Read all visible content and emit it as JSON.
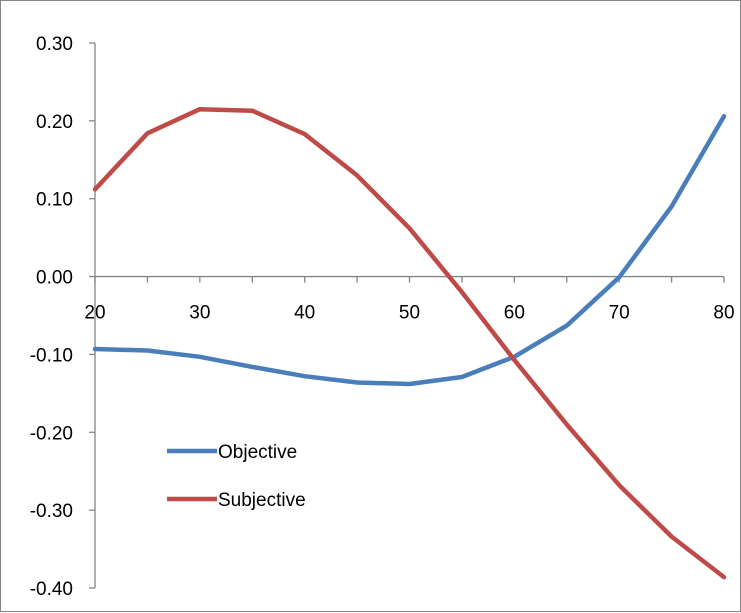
{
  "chart_data": {
    "type": "line",
    "title": "",
    "xlabel": "",
    "ylabel": "",
    "x": [
      20,
      25,
      30,
      35,
      40,
      45,
      50,
      55,
      60,
      65,
      70,
      75,
      80
    ],
    "xlim": [
      20,
      80
    ],
    "ylim": [
      -0.4,
      0.3
    ],
    "x_ticks": [
      "20",
      "30",
      "40",
      "50",
      "60",
      "70",
      "80"
    ],
    "y_ticks": [
      "0.30",
      "0.20",
      "0.10",
      "0.00",
      "-0.10",
      "-0.20",
      "-0.30",
      "-0.40"
    ],
    "grid": false,
    "legend_position": "bottom-left",
    "series": [
      {
        "name": "Objective",
        "color": "#4a7ebb",
        "values": [
          -0.093,
          -0.095,
          -0.103,
          -0.116,
          -0.128,
          -0.136,
          -0.138,
          -0.129,
          -0.103,
          -0.063,
          -0.001,
          0.09,
          0.206
        ]
      },
      {
        "name": "Subjective",
        "color": "#be4b48",
        "values": [
          0.112,
          0.184,
          0.215,
          0.213,
          0.183,
          0.13,
          0.062,
          -0.02,
          -0.107,
          -0.19,
          -0.268,
          -0.334,
          -0.386
        ]
      }
    ]
  }
}
